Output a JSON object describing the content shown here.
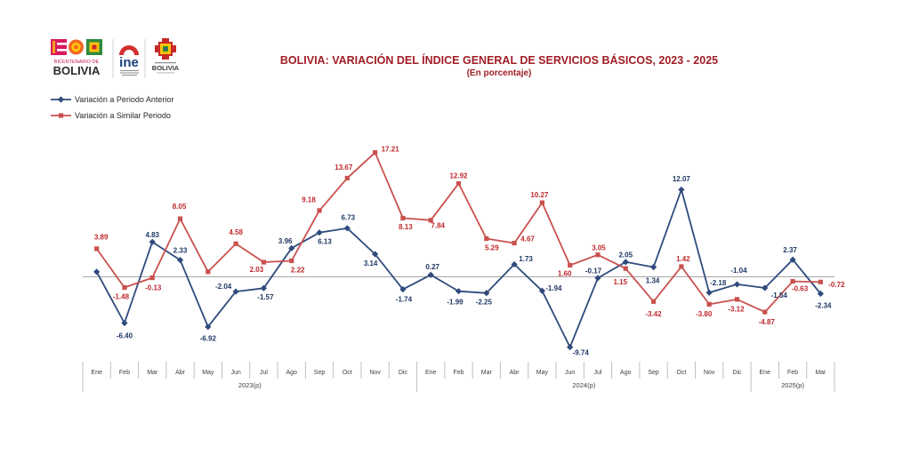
{
  "logos": {
    "bicentenario": {
      "line1": "BICENTENARIO DE",
      "line2": "BOLIVIA"
    },
    "ine": {
      "wordmark": "ine"
    },
    "estado": {
      "wordmark": "BOLIVIA"
    }
  },
  "colors": {
    "series_1": "#2f4b7c",
    "series_2": "#c9514e",
    "label_1": "#1f3864",
    "label_2": "#c0282d",
    "title": "#a01d26"
  },
  "chart_data": {
    "type": "line",
    "title": "BOLIVIA: VARIACIÓN DEL ÍNDICE GENERAL DE SERVICIOS BÁSICOS, 2023 - 2025",
    "subtitle": "(En porcentaje)",
    "xlabel": "",
    "ylabel": "",
    "ylim": [
      -12,
      20
    ],
    "grid": false,
    "legend_position": "top-left",
    "category_groups": [
      {
        "label": "2023(p)",
        "categories": [
          "Ene",
          "Feb",
          "Mar",
          "Abr",
          "May",
          "Jun",
          "Jul",
          "Ago",
          "Sep",
          "Oct",
          "Nov",
          "Dic"
        ]
      },
      {
        "label": "2024(p)",
        "categories": [
          "Ene",
          "Feb",
          "Mar",
          "Abr",
          "May",
          "Jun",
          "Jul",
          "Ago",
          "Sep",
          "Oct",
          "Nov",
          "Dic"
        ]
      },
      {
        "label": "2025(p)",
        "categories": [
          "Ene",
          "Feb",
          "Mar"
        ]
      }
    ],
    "series": [
      {
        "name": "Variación a Periodo Anterior",
        "marker": "diamond",
        "values": [
          0.7,
          -6.4,
          4.83,
          2.33,
          -6.92,
          -2.04,
          -1.57,
          3.96,
          6.13,
          6.73,
          3.14,
          -1.74,
          0.27,
          -1.99,
          -2.25,
          1.73,
          -1.94,
          -9.74,
          -0.17,
          2.05,
          1.34,
          12.07,
          -2.18,
          -1.04,
          -1.54,
          2.37,
          -2.34
        ],
        "data_labels": [
          null,
          "-6.40",
          "4.83",
          "2.33",
          "-6.92",
          "-2.04",
          "-1.57",
          "3.96",
          "6.13",
          "6.73",
          "3.14",
          "-1.74",
          "0.27",
          "-1.99",
          "-2.25",
          "1.73",
          "-1.94",
          "-9.74",
          "-0.17",
          "2.05",
          "1.34",
          "12.07",
          "-2.18",
          "-1.04",
          "-1.54",
          "2.37",
          "-2.34"
        ]
      },
      {
        "name": "Variación a Similar Periodo",
        "marker": "square",
        "values": [
          3.89,
          -1.48,
          -0.13,
          8.05,
          0.7,
          4.58,
          2.03,
          2.22,
          9.18,
          13.67,
          17.21,
          8.13,
          7.84,
          12.92,
          5.29,
          4.67,
          10.27,
          1.6,
          3.05,
          1.15,
          -3.42,
          1.42,
          -3.8,
          -3.12,
          -4.87,
          -0.63,
          -0.72
        ],
        "data_labels": [
          "3.89",
          "-1.48",
          "-0.13",
          "8.05",
          null,
          "4.58",
          "2.03",
          "2.22",
          "9.18",
          "13.67",
          "17.21",
          "8.13",
          "7.84",
          "12.92",
          "5.29",
          "4.67",
          "10.27",
          "1.60",
          "3.05",
          "1.15",
          "-3.42",
          "1.42",
          "-3.80",
          "-3.12",
          "-4.87",
          "-0.63",
          "-0.72"
        ]
      }
    ]
  }
}
